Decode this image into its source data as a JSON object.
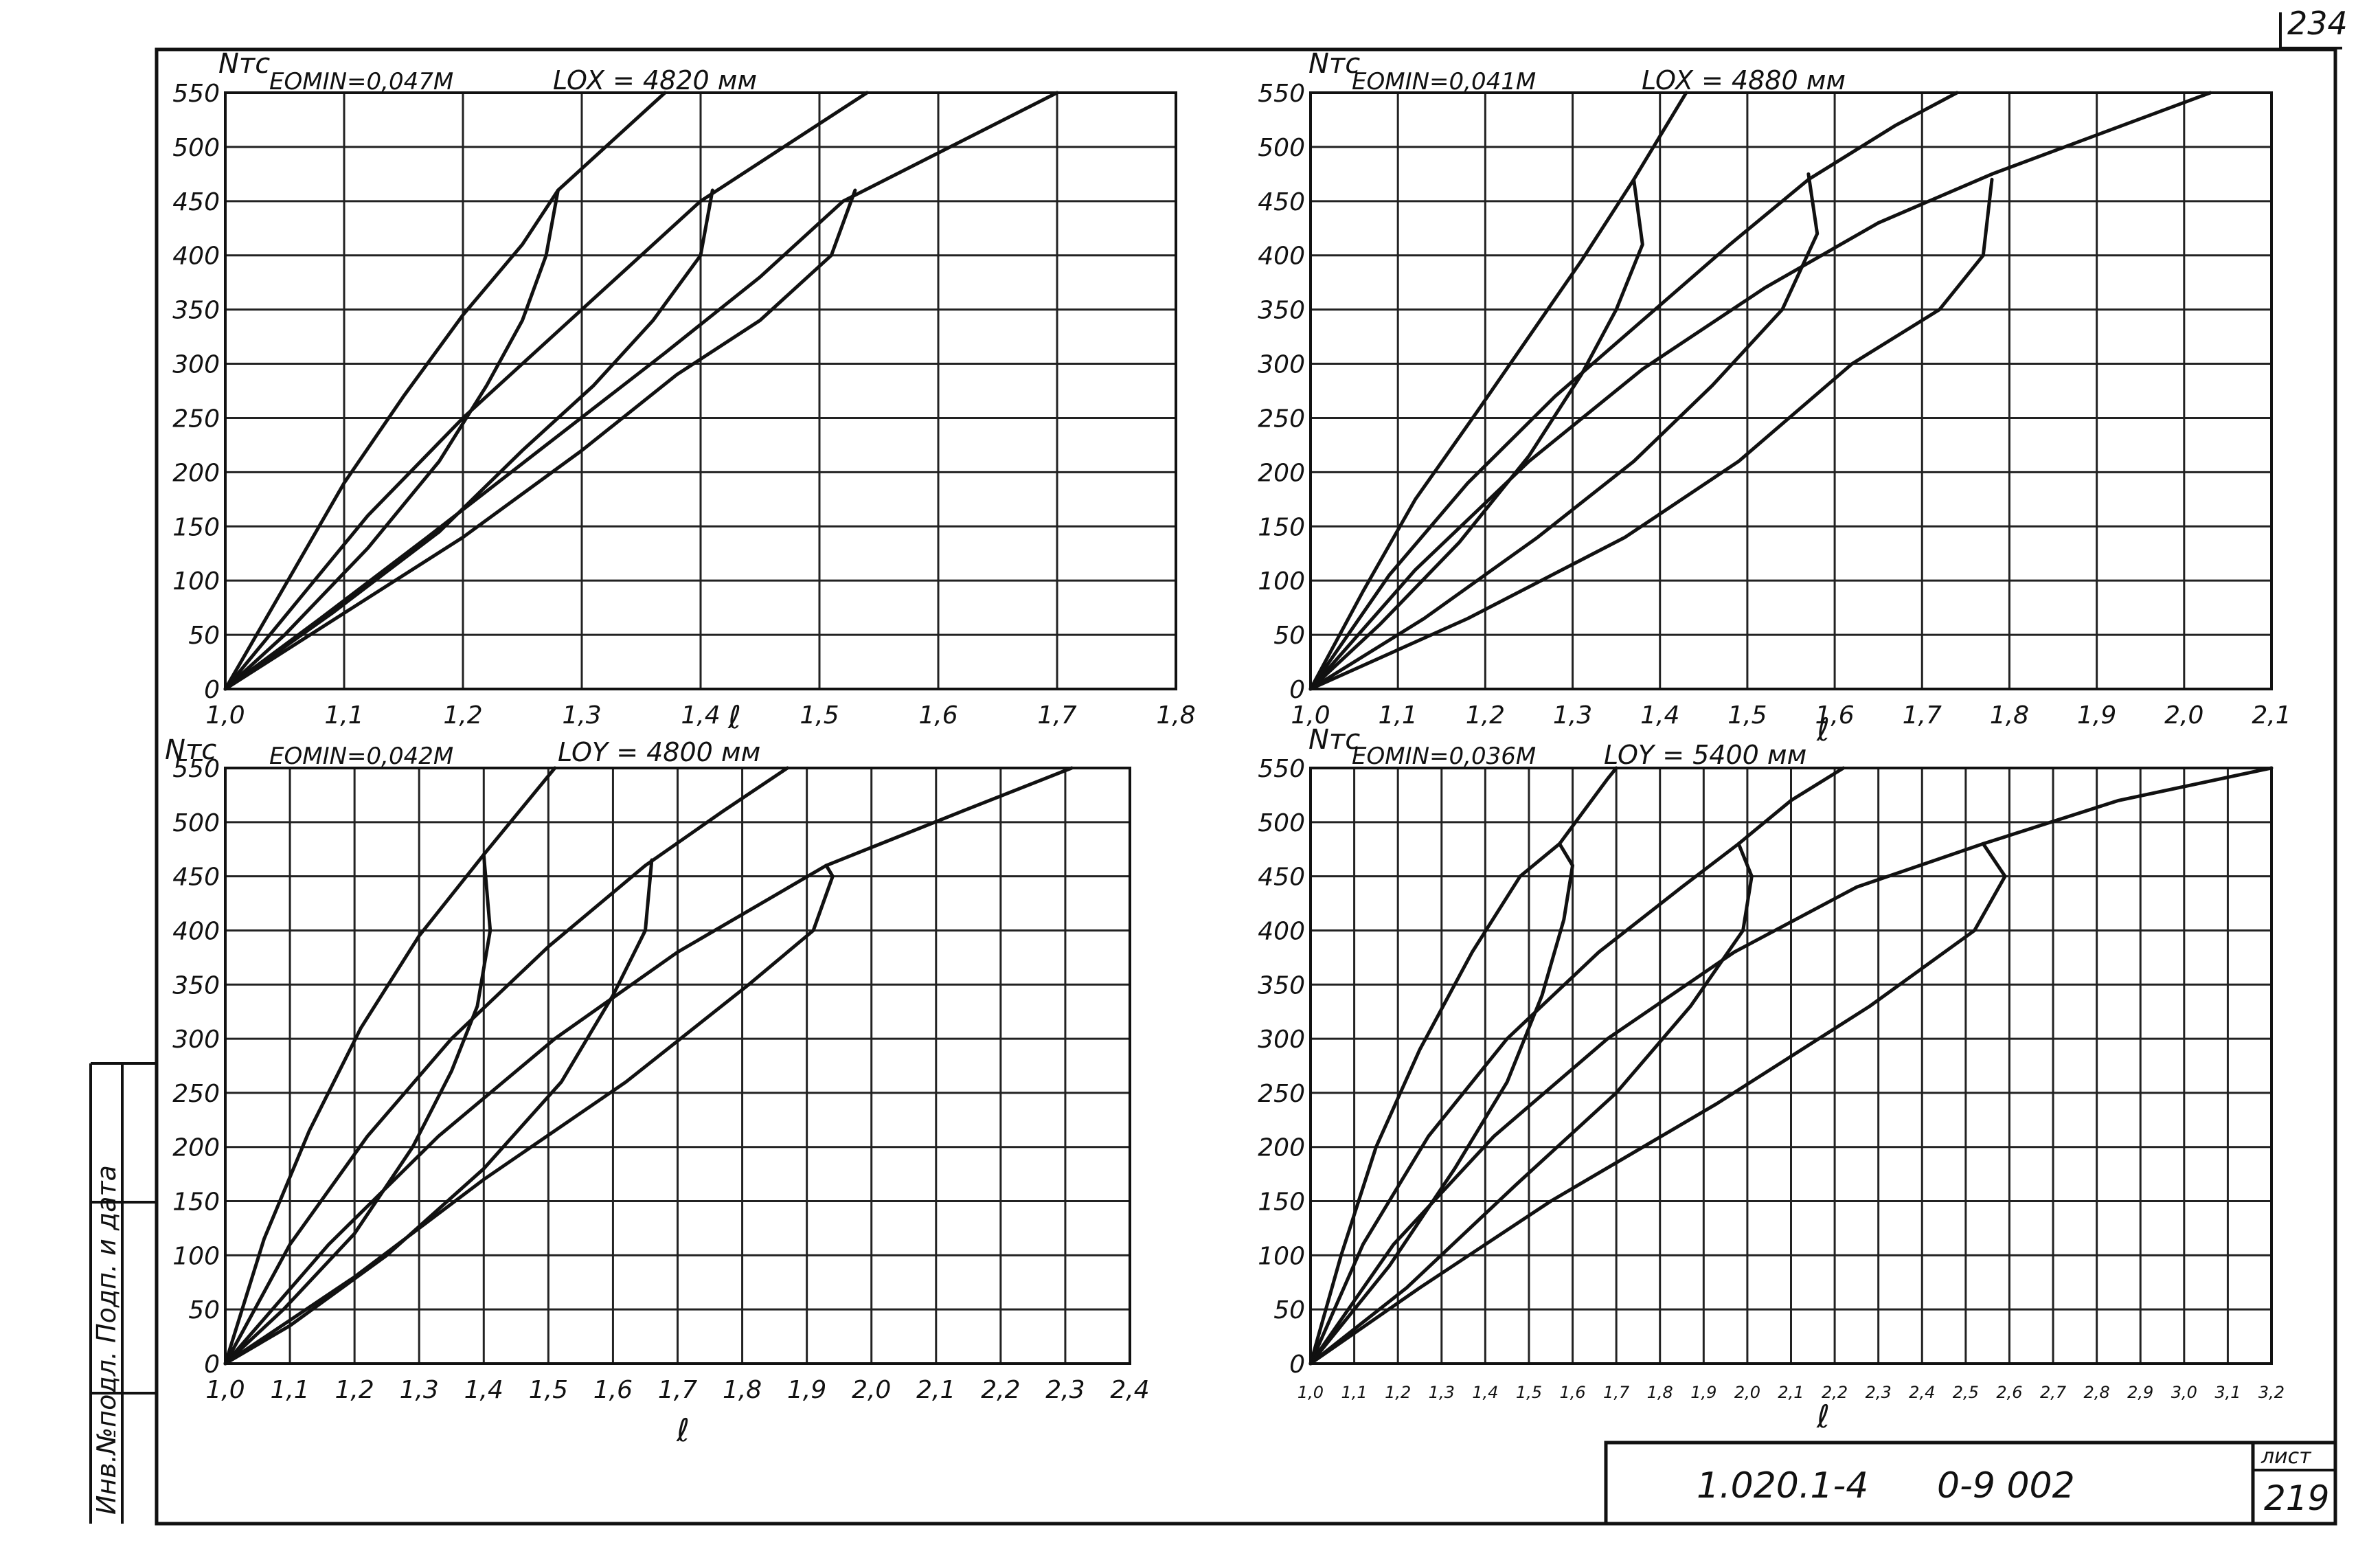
{
  "sheet": {
    "corner_number": "234",
    "doc_code": "1.020.1-4",
    "doc_sheet": "0-9 002",
    "list_label": "лист",
    "list_number": "219",
    "side_stamp": "Инв.№подл. Подп. и дата"
  },
  "chart_data": [
    {
      "type": "line",
      "ylabel": "Nтс",
      "xlabel": "ℓ",
      "param_e": "EOMIN=0,047M",
      "param_l": "LOX = 4820 мм",
      "xlim": [
        1.0,
        1.8
      ],
      "ylim": [
        0,
        550
      ],
      "x_ticks": [
        "1,0",
        "1,1",
        "1,2",
        "1,3",
        "1,4",
        "1,5",
        "1,6",
        "1,7",
        "1,8"
      ],
      "y_ticks": [
        "0",
        "50",
        "100",
        "150",
        "200",
        "250",
        "300",
        "350",
        "400",
        "450",
        "500",
        "550"
      ],
      "grid": true,
      "series": [
        {
          "values": [
            [
              1.0,
              0
            ],
            [
              1.05,
              95
            ],
            [
              1.1,
              190
            ],
            [
              1.15,
              270
            ],
            [
              1.2,
              345
            ],
            [
              1.25,
              410
            ],
            [
              1.28,
              460
            ],
            [
              1.32,
              500
            ],
            [
              1.37,
              550
            ]
          ]
        },
        {
          "values": [
            [
              1.0,
              0
            ],
            [
              1.06,
              80
            ],
            [
              1.12,
              160
            ],
            [
              1.2,
              250
            ],
            [
              1.28,
              330
            ],
            [
              1.34,
              390
            ],
            [
              1.4,
              450
            ],
            [
              1.47,
              500
            ],
            [
              1.54,
              550
            ]
          ]
        },
        {
          "values": [
            [
              1.0,
              0
            ],
            [
              1.08,
              65
            ],
            [
              1.17,
              140
            ],
            [
              1.27,
              225
            ],
            [
              1.37,
              310
            ],
            [
              1.45,
              380
            ],
            [
              1.52,
              450
            ],
            [
              1.61,
              500
            ],
            [
              1.7,
              550
            ]
          ]
        },
        {
          "values": [
            [
              1.28,
              460
            ],
            [
              1.27,
              400
            ],
            [
              1.25,
              340
            ],
            [
              1.22,
              280
            ],
            [
              1.18,
              210
            ],
            [
              1.12,
              130
            ],
            [
              1.05,
              50
            ],
            [
              1.0,
              0
            ]
          ]
        },
        {
          "values": [
            [
              1.41,
              460
            ],
            [
              1.4,
              400
            ],
            [
              1.36,
              340
            ],
            [
              1.31,
              280
            ],
            [
              1.25,
              220
            ],
            [
              1.18,
              145
            ],
            [
              1.09,
              70
            ],
            [
              1.0,
              0
            ]
          ]
        },
        {
          "values": [
            [
              1.53,
              460
            ],
            [
              1.51,
              400
            ],
            [
              1.45,
              340
            ],
            [
              1.38,
              290
            ],
            [
              1.3,
              220
            ],
            [
              1.2,
              140
            ],
            [
              1.1,
              70
            ],
            [
              1.0,
              0
            ]
          ]
        }
      ]
    },
    {
      "type": "line",
      "ylabel": "Nтс",
      "xlabel": "ℓ",
      "param_e": "EOMIN=0,041M",
      "param_l": "LOX = 4880 мм",
      "xlim": [
        1.0,
        2.1
      ],
      "ylim": [
        0,
        550
      ],
      "x_ticks": [
        "1,0",
        "1,1",
        "1,2",
        "1,3",
        "1,4",
        "1,5",
        "1,6",
        "1,7",
        "1,8",
        "1,9",
        "2,0",
        "2,1"
      ],
      "y_ticks": [
        "0",
        "50",
        "100",
        "150",
        "200",
        "250",
        "300",
        "350",
        "400",
        "450",
        "500",
        "550"
      ],
      "grid": true,
      "series": [
        {
          "values": [
            [
              1.0,
              0
            ],
            [
              1.06,
              90
            ],
            [
              1.12,
              175
            ],
            [
              1.19,
              255
            ],
            [
              1.25,
              325
            ],
            [
              1.31,
              395
            ],
            [
              1.37,
              470
            ],
            [
              1.43,
              550
            ]
          ]
        },
        {
          "values": [
            [
              1.0,
              0
            ],
            [
              1.09,
              105
            ],
            [
              1.18,
              190
            ],
            [
              1.28,
              270
            ],
            [
              1.38,
              340
            ],
            [
              1.48,
              410
            ],
            [
              1.57,
              470
            ],
            [
              1.67,
              520
            ],
            [
              1.74,
              550
            ]
          ]
        },
        {
          "values": [
            [
              1.0,
              0
            ],
            [
              1.12,
              110
            ],
            [
              1.25,
              210
            ],
            [
              1.38,
              295
            ],
            [
              1.52,
              370
            ],
            [
              1.65,
              430
            ],
            [
              1.78,
              475
            ],
            [
              1.93,
              520
            ],
            [
              2.03,
              550
            ]
          ]
        },
        {
          "values": [
            [
              1.37,
              470
            ],
            [
              1.38,
              410
            ],
            [
              1.35,
              350
            ],
            [
              1.31,
              290
            ],
            [
              1.25,
              215
            ],
            [
              1.17,
              135
            ],
            [
              1.08,
              60
            ],
            [
              1.0,
              0
            ]
          ]
        },
        {
          "values": [
            [
              1.57,
              475
            ],
            [
              1.58,
              420
            ],
            [
              1.54,
              350
            ],
            [
              1.46,
              280
            ],
            [
              1.37,
              210
            ],
            [
              1.26,
              140
            ],
            [
              1.13,
              65
            ],
            [
              1.0,
              0
            ]
          ]
        },
        {
          "values": [
            [
              1.78,
              470
            ],
            [
              1.77,
              400
            ],
            [
              1.72,
              350
            ],
            [
              1.62,
              300
            ],
            [
              1.49,
              210
            ],
            [
              1.36,
              140
            ],
            [
              1.18,
              65
            ],
            [
              1.0,
              0
            ]
          ]
        }
      ]
    },
    {
      "type": "line",
      "ylabel": "Nтс",
      "xlabel": "ℓ",
      "param_e": "EOMIN=0,042M",
      "param_l": "LOY = 4800 мм",
      "xlim": [
        1.0,
        2.4
      ],
      "ylim": [
        0,
        550
      ],
      "x_ticks": [
        "1,0",
        "1,1",
        "1,2",
        "1,3",
        "1,4",
        "1,5",
        "1,6",
        "1,7",
        "1,8",
        "1,9",
        "2,0",
        "2,1",
        "2,2",
        "2,3",
        "2,4"
      ],
      "y_ticks": [
        "0",
        "50",
        "100",
        "150",
        "200",
        "250",
        "300",
        "350",
        "400",
        "450",
        "500",
        "550"
      ],
      "grid": true,
      "series": [
        {
          "values": [
            [
              1.0,
              0
            ],
            [
              1.06,
              115
            ],
            [
              1.13,
              215
            ],
            [
              1.21,
              310
            ],
            [
              1.3,
              395
            ],
            [
              1.4,
              470
            ],
            [
              1.51,
              550
            ]
          ]
        },
        {
          "values": [
            [
              1.0,
              0
            ],
            [
              1.1,
              110
            ],
            [
              1.22,
              210
            ],
            [
              1.35,
              300
            ],
            [
              1.5,
              385
            ],
            [
              1.65,
              460
            ],
            [
              1.77,
              510
            ],
            [
              1.87,
              550
            ]
          ]
        },
        {
          "values": [
            [
              1.0,
              0
            ],
            [
              1.16,
              110
            ],
            [
              1.33,
              210
            ],
            [
              1.51,
              300
            ],
            [
              1.7,
              380
            ],
            [
              1.93,
              460
            ],
            [
              2.14,
              510
            ],
            [
              2.31,
              550
            ]
          ]
        },
        {
          "values": [
            [
              1.4,
              470
            ],
            [
              1.41,
              400
            ],
            [
              1.39,
              330
            ],
            [
              1.35,
              270
            ],
            [
              1.29,
              200
            ],
            [
              1.2,
              120
            ],
            [
              1.09,
              50
            ],
            [
              1.0,
              0
            ]
          ]
        },
        {
          "values": [
            [
              1.66,
              465
            ],
            [
              1.65,
              400
            ],
            [
              1.6,
              340
            ],
            [
              1.52,
              260
            ],
            [
              1.4,
              180
            ],
            [
              1.25,
              100
            ],
            [
              1.1,
              35
            ],
            [
              1.0,
              0
            ]
          ]
        },
        {
          "values": [
            [
              1.93,
              460
            ],
            [
              1.94,
              450
            ],
            [
              1.91,
              400
            ],
            [
              1.81,
              350
            ],
            [
              1.62,
              260
            ],
            [
              1.4,
              170
            ],
            [
              1.2,
              80
            ],
            [
              1.0,
              0
            ]
          ]
        }
      ]
    },
    {
      "type": "line",
      "ylabel": "Nтс",
      "xlabel": "ℓ",
      "param_e": "EOMIN=0,036M",
      "param_l": "LOY = 5400 мм",
      "xlim": [
        1.0,
        3.2
      ],
      "ylim": [
        0,
        550
      ],
      "x_ticks": [
        "1,0",
        "1,1",
        "1,2",
        "1,3",
        "1,4",
        "1,5",
        "1,6",
        "1,7",
        "1,8",
        "1,9",
        "2,0",
        "2,1",
        "2,2",
        "2,3",
        "2,4",
        "2,5",
        "2,6",
        "2,7",
        "2,8",
        "2,9",
        "3,0",
        "3,1",
        "3,2"
      ],
      "y_ticks": [
        "0",
        "50",
        "100",
        "150",
        "200",
        "250",
        "300",
        "350",
        "400",
        "450",
        "500",
        "550"
      ],
      "grid": true,
      "series": [
        {
          "values": [
            [
              1.0,
              0
            ],
            [
              1.07,
              100
            ],
            [
              1.15,
              200
            ],
            [
              1.25,
              290
            ],
            [
              1.37,
              380
            ],
            [
              1.48,
              450
            ],
            [
              1.57,
              480
            ],
            [
              1.68,
              540
            ],
            [
              1.7,
              550
            ]
          ]
        },
        {
          "values": [
            [
              1.0,
              0
            ],
            [
              1.12,
              110
            ],
            [
              1.27,
              210
            ],
            [
              1.45,
              300
            ],
            [
              1.66,
              380
            ],
            [
              1.85,
              440
            ],
            [
              1.98,
              480
            ],
            [
              2.1,
              520
            ],
            [
              2.22,
              550
            ]
          ]
        },
        {
          "values": [
            [
              1.0,
              0
            ],
            [
              1.19,
              110
            ],
            [
              1.42,
              210
            ],
            [
              1.68,
              300
            ],
            [
              1.97,
              380
            ],
            [
              2.25,
              440
            ],
            [
              2.54,
              480
            ],
            [
              2.85,
              520
            ],
            [
              3.2,
              550
            ]
          ]
        },
        {
          "values": [
            [
              1.57,
              480
            ],
            [
              1.6,
              460
            ],
            [
              1.58,
              410
            ],
            [
              1.53,
              340
            ],
            [
              1.45,
              260
            ],
            [
              1.33,
              180
            ],
            [
              1.18,
              90
            ],
            [
              1.0,
              0
            ]
          ]
        },
        {
          "values": [
            [
              1.98,
              480
            ],
            [
              2.01,
              450
            ],
            [
              1.99,
              400
            ],
            [
              1.87,
              330
            ],
            [
              1.7,
              250
            ],
            [
              1.47,
              165
            ],
            [
              1.22,
              70
            ],
            [
              1.0,
              0
            ]
          ]
        },
        {
          "values": [
            [
              2.54,
              480
            ],
            [
              2.59,
              450
            ],
            [
              2.52,
              400
            ],
            [
              2.28,
              330
            ],
            [
              1.93,
              240
            ],
            [
              1.55,
              150
            ],
            [
              1.25,
              70
            ],
            [
              1.0,
              0
            ]
          ]
        }
      ]
    }
  ]
}
